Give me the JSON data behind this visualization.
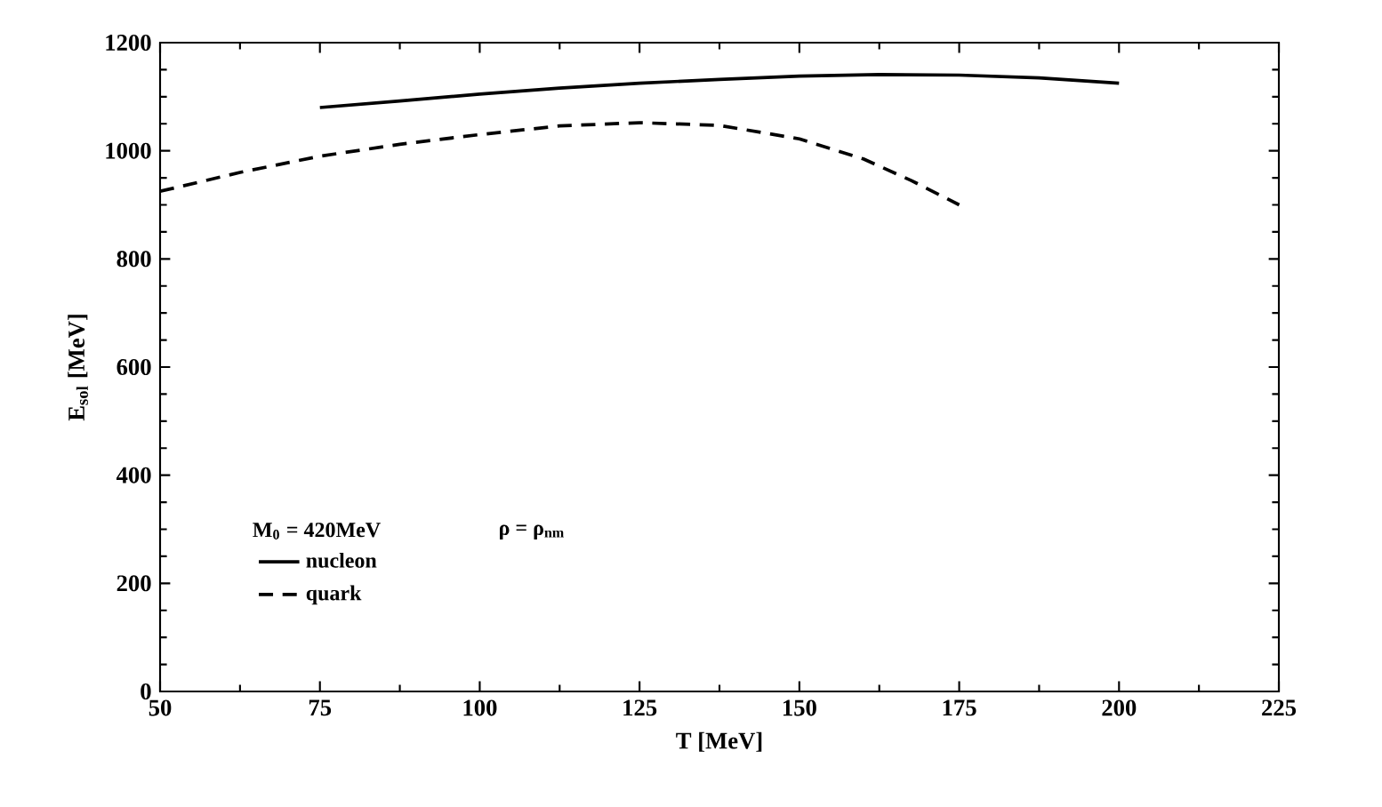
{
  "chart_data": {
    "type": "line",
    "xlabel": "T  [MeV]",
    "ylabel": "E$_{sol}$  [MeV]",
    "xlim": [
      50,
      225
    ],
    "xticks": [
      50,
      75,
      100,
      125,
      150,
      175,
      200,
      225
    ],
    "ylim": [
      0,
      1200
    ],
    "yticks": [
      0,
      200,
      400,
      600,
      800,
      1000,
      1200
    ],
    "grid": false,
    "legend": "bottom left",
    "annotations": [
      "M$_{0}$ = 420MeV",
      "ρ = ρ$_{nm}$"
    ],
    "series": [
      {
        "name": "nucleon",
        "color": "#000000",
        "line_style": "solid",
        "x": [
          75,
          87.5,
          100,
          112.5,
          125,
          137.5,
          150,
          162.5,
          175,
          187.5,
          200
        ],
        "values": [
          1080,
          1092,
          1105,
          1116,
          1125,
          1132,
          1138,
          1141,
          1140,
          1135,
          1125
        ]
      },
      {
        "name": "quark",
        "color": "#000000",
        "line_style": "dashed",
        "x": [
          50,
          62.5,
          75,
          87.5,
          100,
          112.5,
          125,
          137.5,
          150,
          160,
          167.5,
          175
        ],
        "values": [
          925,
          960,
          990,
          1012,
          1030,
          1046,
          1052,
          1047,
          1022,
          985,
          945,
          900
        ]
      }
    ]
  }
}
